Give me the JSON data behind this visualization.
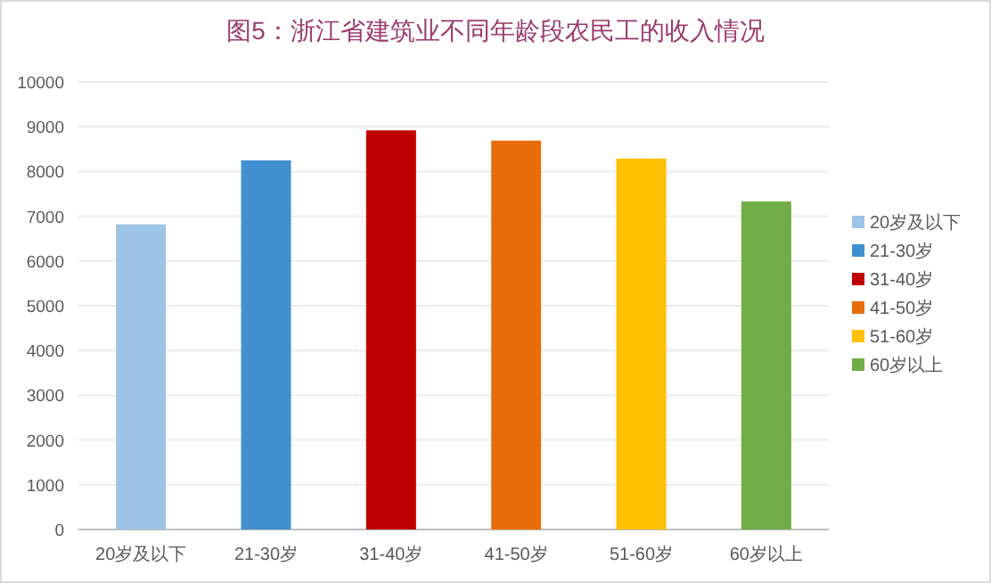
{
  "chart_data": {
    "type": "bar",
    "title": "图5：浙江省建筑业不同年龄段农民工的收入情况",
    "categories": [
      "20岁及以下",
      "21-30岁",
      "31-40岁",
      "41-50岁",
      "51-60岁",
      "60岁以上"
    ],
    "series": [
      {
        "name": "20岁及以下",
        "color": "#9dc3e6",
        "values": [
          6820,
          null,
          null,
          null,
          null,
          null
        ]
      },
      {
        "name": "21-30岁",
        "color": "#4090d0",
        "values": [
          null,
          8250,
          null,
          null,
          null,
          null
        ]
      },
      {
        "name": "31-40岁",
        "color": "#c00000",
        "values": [
          null,
          null,
          8920,
          null,
          null,
          null
        ]
      },
      {
        "name": "41-50岁",
        "color": "#e96c0b",
        "values": [
          null,
          null,
          null,
          8690,
          null,
          null
        ]
      },
      {
        "name": "51-60岁",
        "color": "#ffc000",
        "values": [
          null,
          null,
          null,
          null,
          8290,
          null
        ]
      },
      {
        "name": "60岁以上",
        "color": "#70ad47",
        "values": [
          null,
          null,
          null,
          null,
          null,
          7330
        ]
      }
    ],
    "ylim": [
      0,
      10000
    ],
    "yticks": [
      0,
      1000,
      2000,
      3000,
      4000,
      5000,
      6000,
      7000,
      8000,
      9000,
      10000
    ],
    "grid": "y",
    "legend": "right"
  }
}
